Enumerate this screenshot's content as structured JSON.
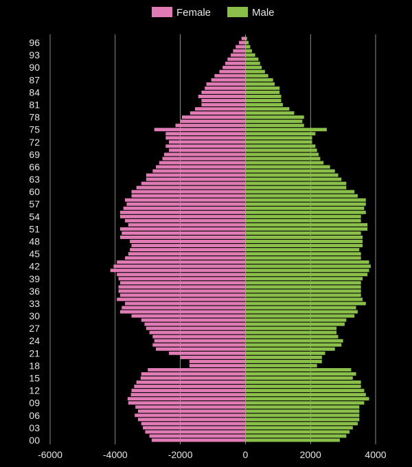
{
  "chart_data": {
    "type": "bar",
    "orientation": "horizontal",
    "layout": "population-pyramid",
    "title": "",
    "xlabel": "",
    "ylabel": "",
    "xlim": [
      -6000,
      4000
    ],
    "x_ticks": [
      -6000,
      -4000,
      -2000,
      0,
      2000,
      4000
    ],
    "x_tick_labels": [
      "-6000",
      "-4000",
      "-2000",
      "0",
      "2000",
      "4000"
    ],
    "y_tick_labels": [
      "00",
      "03",
      "06",
      "09",
      "12",
      "15",
      "18",
      "21",
      "24",
      "27",
      "30",
      "33",
      "36",
      "39",
      "42",
      "45",
      "48",
      "51",
      "54",
      "57",
      "60",
      "63",
      "66",
      "69",
      "72",
      "75",
      "78",
      "81",
      "84",
      "87",
      "90",
      "93",
      "96"
    ],
    "grid": "vertical",
    "legend_position": "top-center",
    "categories": [
      0,
      1,
      2,
      3,
      4,
      5,
      6,
      7,
      8,
      9,
      10,
      11,
      12,
      13,
      14,
      15,
      16,
      17,
      18,
      19,
      20,
      21,
      22,
      23,
      24,
      25,
      26,
      27,
      28,
      29,
      30,
      31,
      32,
      33,
      34,
      35,
      36,
      37,
      38,
      39,
      40,
      41,
      42,
      43,
      44,
      45,
      46,
      47,
      48,
      49,
      50,
      51,
      52,
      53,
      54,
      55,
      56,
      57,
      58,
      59,
      60,
      61,
      62,
      63,
      64,
      65,
      66,
      67,
      68,
      69,
      70,
      71,
      72,
      73,
      74,
      75,
      76,
      77,
      78,
      79,
      80,
      81,
      82,
      83,
      84,
      85,
      86,
      87,
      88,
      89,
      90,
      91,
      92,
      93,
      94,
      95,
      96,
      97
    ],
    "series": [
      {
        "name": "Female",
        "color": "#e07bb5",
        "values": [
          -2880,
          -2950,
          -3080,
          -3150,
          -3200,
          -3300,
          -3400,
          -3300,
          -3380,
          -3600,
          -3620,
          -3520,
          -3500,
          -3420,
          -3350,
          -3220,
          -3200,
          -3000,
          -1720,
          -1720,
          -2000,
          -2350,
          -2750,
          -2850,
          -2800,
          -2850,
          -2950,
          -3050,
          -3100,
          -3200,
          -3500,
          -3850,
          -3800,
          -3700,
          -3950,
          -3850,
          -3900,
          -3900,
          -3850,
          -3900,
          -3950,
          -4150,
          -4050,
          -3950,
          -3700,
          -3600,
          -3550,
          -3500,
          -3550,
          -3850,
          -3800,
          -3850,
          -3600,
          -3700,
          -3850,
          -3850,
          -3750,
          -3650,
          -3700,
          -3500,
          -3500,
          -3350,
          -3200,
          -3050,
          -3050,
          -2850,
          -2750,
          -2650,
          -2550,
          -2500,
          -2350,
          -2450,
          -2350,
          -2450,
          -2450,
          -2800,
          -2150,
          -2000,
          -1950,
          -1700,
          -1550,
          -1350,
          -1350,
          -1450,
          -1350,
          -1250,
          -1200,
          -1050,
          -950,
          -800,
          -700,
          -620,
          -550,
          -450,
          -380,
          -300,
          -200,
          -120
        ]
      },
      {
        "name": "Male",
        "color": "#8ac04a",
        "values": [
          2900,
          3100,
          3200,
          3300,
          3450,
          3500,
          3500,
          3500,
          3500,
          3650,
          3800,
          3700,
          3650,
          3550,
          3550,
          3300,
          3400,
          3250,
          2200,
          2350,
          2350,
          2450,
          2750,
          2950,
          3000,
          2850,
          2800,
          2800,
          3050,
          3100,
          3350,
          3450,
          3400,
          3700,
          3600,
          3550,
          3550,
          3550,
          3550,
          3600,
          3750,
          3800,
          3850,
          3800,
          3550,
          3550,
          3500,
          3600,
          3600,
          3600,
          3550,
          3750,
          3750,
          3550,
          3550,
          3700,
          3650,
          3700,
          3700,
          3450,
          3350,
          3100,
          3100,
          2950,
          2850,
          2750,
          2600,
          2400,
          2300,
          2250,
          2200,
          2150,
          2050,
          2050,
          2150,
          2500,
          1800,
          1750,
          1800,
          1500,
          1350,
          1150,
          1100,
          1100,
          1050,
          1050,
          900,
          850,
          700,
          600,
          500,
          450,
          400,
          300,
          200,
          150,
          100,
          50
        ]
      }
    ]
  }
}
